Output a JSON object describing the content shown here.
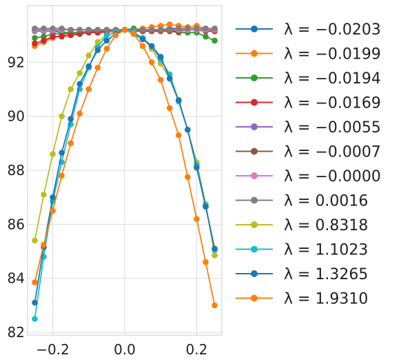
{
  "chart_data": {
    "type": "line",
    "title": "",
    "xlabel": "",
    "ylabel": "",
    "xlim": [
      -0.27,
      0.27
    ],
    "ylim": [
      81.9,
      94.1
    ],
    "xticks": [
      -0.2,
      0.0,
      0.2
    ],
    "xtick_labels": [
      "−0.2",
      "0.0",
      "0.2"
    ],
    "yticks": [
      82,
      84,
      86,
      88,
      90,
      92
    ],
    "ytick_labels": [
      "82",
      "84",
      "86",
      "88",
      "90",
      "92"
    ],
    "grid": true,
    "legend_placement": "outside-right",
    "series": [
      {
        "name": "λ = −0.0203",
        "color": "#1f77b4",
        "x": [
          -0.25,
          -0.225,
          -0.2,
          -0.175,
          -0.15,
          -0.125,
          -0.1,
          -0.075,
          -0.05,
          -0.025,
          0.0,
          0.025,
          0.05,
          0.075,
          0.1,
          0.125,
          0.15,
          0.175,
          0.2,
          0.225,
          0.25
        ],
        "y": [
          93.2,
          93.15,
          93.15,
          93.1,
          93.1,
          93.05,
          93.15,
          93.1,
          93.15,
          93.2,
          93.2,
          93.15,
          93.15,
          93.15,
          93.2,
          93.25,
          93.25,
          93.2,
          93.2,
          93.25,
          93.2
        ]
      },
      {
        "name": "λ = −0.0199",
        "color": "#ff7f0e",
        "x": [
          -0.25,
          -0.225,
          -0.2,
          -0.175,
          -0.15,
          -0.125,
          -0.1,
          -0.075,
          -0.05,
          -0.025,
          0.0,
          0.025,
          0.05,
          0.075,
          0.1,
          0.125,
          0.15,
          0.175,
          0.2,
          0.225,
          0.25
        ],
        "y": [
          92.6,
          92.75,
          92.9,
          93.0,
          93.05,
          93.05,
          93.15,
          93.1,
          93.1,
          93.15,
          93.2,
          93.2,
          93.25,
          93.3,
          93.35,
          93.4,
          93.35,
          93.3,
          93.35,
          93.25,
          93.15
        ]
      },
      {
        "name": "λ = −0.0194",
        "color": "#2ca02c",
        "x": [
          -0.25,
          -0.225,
          -0.2,
          -0.175,
          -0.15,
          -0.125,
          -0.1,
          -0.075,
          -0.05,
          -0.025,
          0.0,
          0.025,
          0.05,
          0.075,
          0.1,
          0.125,
          0.15,
          0.175,
          0.2,
          0.225,
          0.25
        ],
        "y": [
          92.9,
          92.95,
          93.05,
          93.05,
          93.1,
          93.1,
          93.15,
          93.15,
          93.15,
          93.2,
          93.2,
          93.25,
          93.2,
          93.2,
          93.2,
          93.15,
          93.1,
          93.1,
          93.1,
          92.95,
          92.8
        ]
      },
      {
        "name": "λ = −0.0169",
        "color": "#d62728",
        "x": [
          -0.25,
          -0.225,
          -0.2,
          -0.175,
          -0.15,
          -0.125,
          -0.1,
          -0.075,
          -0.05,
          -0.025,
          0.0,
          0.025,
          0.05,
          0.075,
          0.1,
          0.125,
          0.15,
          0.175,
          0.2,
          0.225,
          0.25
        ],
        "y": [
          92.7,
          92.8,
          92.95,
          92.95,
          93.0,
          93.05,
          93.1,
          93.1,
          93.15,
          93.2,
          93.2,
          93.2,
          93.15,
          93.15,
          93.15,
          93.15,
          93.15,
          93.2,
          93.2,
          93.15,
          93.15
        ]
      },
      {
        "name": "λ = −0.0055",
        "color": "#9467bd",
        "x": [
          -0.25,
          -0.225,
          -0.2,
          -0.175,
          -0.15,
          -0.125,
          -0.1,
          -0.075,
          -0.05,
          -0.025,
          0.0,
          0.025,
          0.05,
          0.075,
          0.1,
          0.125,
          0.15,
          0.175,
          0.2,
          0.225,
          0.25
        ],
        "y": [
          93.15,
          93.15,
          93.15,
          93.2,
          93.2,
          93.2,
          93.2,
          93.2,
          93.2,
          93.2,
          93.2,
          93.2,
          93.2,
          93.2,
          93.2,
          93.2,
          93.2,
          93.2,
          93.2,
          93.2,
          93.2
        ]
      },
      {
        "name": "λ = −0.0007",
        "color": "#8c564b",
        "x": [
          -0.25,
          -0.225,
          -0.2,
          -0.175,
          -0.15,
          -0.125,
          -0.1,
          -0.075,
          -0.05,
          -0.025,
          0.0,
          0.025,
          0.05,
          0.075,
          0.1,
          0.125,
          0.15,
          0.175,
          0.2,
          0.225,
          0.25
        ],
        "y": [
          93.2,
          93.2,
          93.2,
          93.2,
          93.2,
          93.2,
          93.2,
          93.2,
          93.2,
          93.2,
          93.2,
          93.2,
          93.2,
          93.2,
          93.2,
          93.2,
          93.2,
          93.2,
          93.2,
          93.2,
          93.2
        ]
      },
      {
        "name": "λ = −0.0000",
        "color": "#e377c2",
        "x": [
          -0.25,
          -0.225,
          -0.2,
          -0.175,
          -0.15,
          -0.125,
          -0.1,
          -0.075,
          -0.05,
          -0.025,
          0.0,
          0.025,
          0.05,
          0.075,
          0.1,
          0.125,
          0.15,
          0.175,
          0.2,
          0.225,
          0.25
        ],
        "y": [
          93.2,
          93.2,
          93.2,
          93.2,
          93.2,
          93.2,
          93.2,
          93.2,
          93.2,
          93.2,
          93.2,
          93.2,
          93.2,
          93.2,
          93.2,
          93.2,
          93.2,
          93.2,
          93.2,
          93.2,
          93.2
        ]
      },
      {
        "name": "λ = 0.0016",
        "color": "#7f7f7f",
        "x": [
          -0.25,
          -0.225,
          -0.2,
          -0.175,
          -0.15,
          -0.125,
          -0.1,
          -0.075,
          -0.05,
          -0.025,
          0.0,
          0.025,
          0.05,
          0.075,
          0.1,
          0.125,
          0.15,
          0.175,
          0.2,
          0.225,
          0.25
        ],
        "y": [
          93.25,
          93.25,
          93.25,
          93.25,
          93.2,
          93.2,
          93.2,
          93.2,
          93.2,
          93.2,
          93.2,
          93.2,
          93.2,
          93.2,
          93.2,
          93.2,
          93.25,
          93.25,
          93.25,
          93.25,
          93.25
        ]
      },
      {
        "name": "λ = 0.8318",
        "color": "#bcbd22",
        "x": [
          -0.25,
          -0.225,
          -0.2,
          -0.175,
          -0.15,
          -0.125,
          -0.1,
          -0.075,
          -0.05,
          -0.025,
          0.0,
          0.025,
          0.05,
          0.075,
          0.1,
          0.125,
          0.15,
          0.175,
          0.2,
          0.225,
          0.25
        ],
        "y": [
          85.4,
          87.1,
          88.6,
          90.0,
          91.0,
          91.6,
          92.25,
          92.75,
          93.0,
          93.1,
          93.2,
          93.1,
          92.9,
          92.5,
          91.95,
          91.4,
          90.55,
          89.5,
          88.3,
          86.75,
          84.85
        ]
      },
      {
        "name": "λ = 1.1023",
        "color": "#17becf",
        "x": [
          -0.25,
          -0.225,
          -0.2,
          -0.175,
          -0.15,
          -0.125,
          -0.1,
          -0.075,
          -0.05,
          -0.025,
          0.0,
          0.025,
          0.05,
          0.075,
          0.1,
          0.125,
          0.15,
          0.175,
          0.2,
          0.225,
          0.25
        ],
        "y": [
          82.5,
          84.8,
          86.85,
          88.3,
          89.7,
          91.0,
          91.8,
          92.55,
          93.0,
          93.1,
          93.2,
          93.1,
          92.9,
          92.6,
          92.1,
          91.55,
          90.55,
          89.5,
          88.2,
          86.7,
          85.05
        ]
      },
      {
        "name": "λ = 1.3265",
        "color": "#1f77b4",
        "x": [
          -0.25,
          -0.225,
          -0.2,
          -0.175,
          -0.15,
          -0.125,
          -0.1,
          -0.075,
          -0.05,
          -0.025,
          0.0,
          0.025,
          0.05,
          0.075,
          0.1,
          0.125,
          0.15,
          0.175,
          0.2,
          0.225,
          0.25
        ],
        "y": [
          83.1,
          85.15,
          87.0,
          88.65,
          89.9,
          91.2,
          91.85,
          92.45,
          92.8,
          93.05,
          93.2,
          93.05,
          92.85,
          92.6,
          92.2,
          91.4,
          90.6,
          89.5,
          88.1,
          86.65,
          85.1
        ]
      },
      {
        "name": "λ = 1.9310",
        "color": "#ff7f0e",
        "x": [
          -0.25,
          -0.225,
          -0.2,
          -0.175,
          -0.15,
          -0.125,
          -0.1,
          -0.075,
          -0.05,
          -0.025,
          0.0,
          0.025,
          0.05,
          0.075,
          0.1,
          0.125,
          0.15,
          0.175,
          0.2,
          0.225,
          0.25
        ],
        "y": [
          83.85,
          85.25,
          86.5,
          87.8,
          89.0,
          90.1,
          91.0,
          91.8,
          92.5,
          93.0,
          93.2,
          93.05,
          92.6,
          92.0,
          91.35,
          90.3,
          89.3,
          87.75,
          86.2,
          84.6,
          83.0
        ]
      }
    ]
  }
}
